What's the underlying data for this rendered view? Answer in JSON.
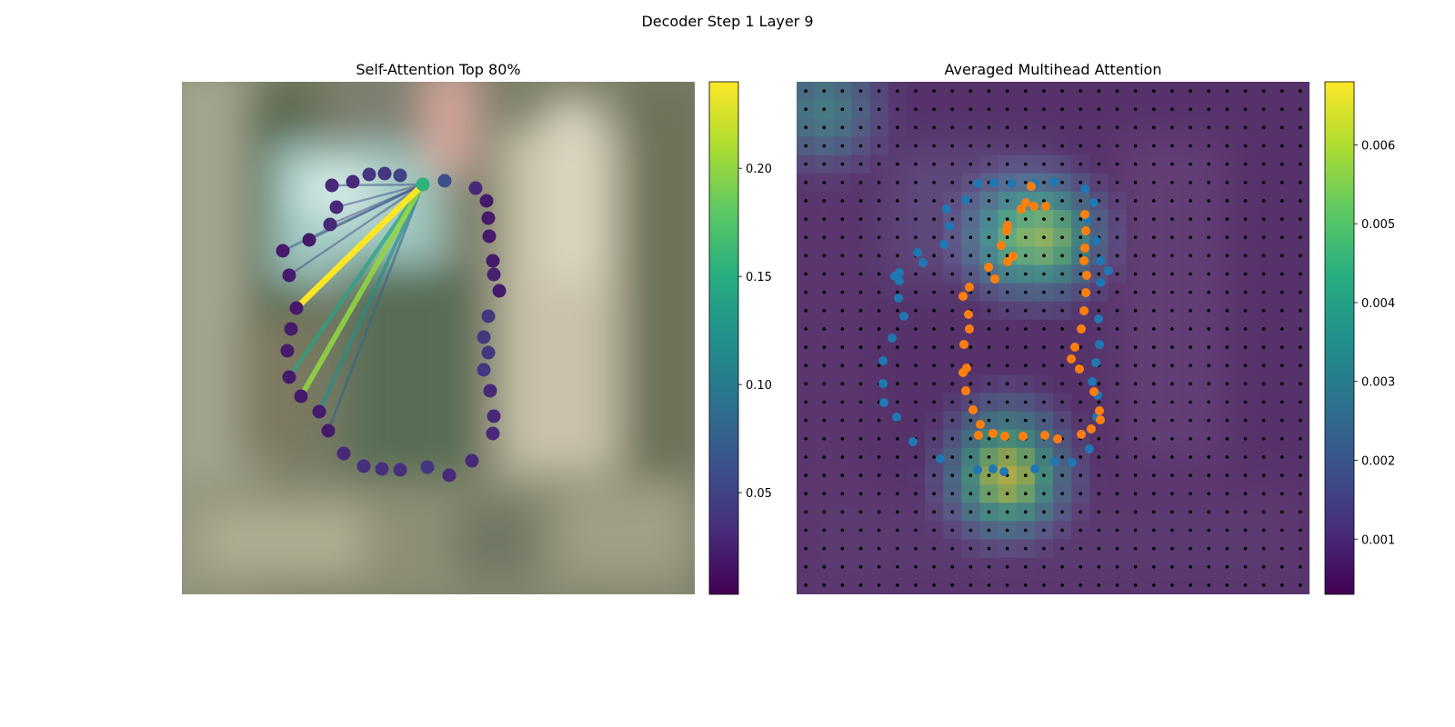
{
  "figure": {
    "title": "Decoder Step 1 Layer 9"
  },
  "chart_data": [
    {
      "type": "scatter",
      "title": "Self-Attention Top 80%",
      "background": "blurred photo",
      "colormap": "viridis",
      "colorbar": {
        "range": [
          0.003,
          0.24
        ],
        "ticks": [
          0.05,
          0.1,
          0.15,
          0.2
        ],
        "tick_labels": [
          "0.05",
          "0.10",
          "0.15",
          "0.20"
        ]
      },
      "query_point": {
        "x": 265,
        "y": 113,
        "value": 0.155
      },
      "contour_points": [
        [
          265,
          113,
          0.155
        ],
        [
          289,
          109,
          0.06
        ],
        [
          323,
          117,
          0.03
        ],
        [
          335,
          131,
          0.02
        ],
        [
          337,
          150,
          0.02
        ],
        [
          338,
          170,
          0.02
        ],
        [
          342,
          197,
          0.02
        ],
        [
          343,
          212,
          0.025
        ],
        [
          349,
          230,
          0.02
        ],
        [
          337,
          258,
          0.04
        ],
        [
          332,
          281,
          0.04
        ],
        [
          337,
          298,
          0.04
        ],
        [
          332,
          317,
          0.04
        ],
        [
          339,
          340,
          0.03
        ],
        [
          343,
          368,
          0.03
        ],
        [
          342,
          387,
          0.03
        ],
        [
          319,
          417,
          0.03
        ],
        [
          294,
          433,
          0.03
        ],
        [
          270,
          424,
          0.04
        ],
        [
          240,
          427,
          0.035
        ],
        [
          220,
          426,
          0.035
        ],
        [
          200,
          423,
          0.035
        ],
        [
          178,
          409,
          0.03
        ],
        [
          161,
          384,
          0.02
        ],
        [
          151,
          363,
          0.02
        ],
        [
          131,
          346,
          0.02
        ],
        [
          118,
          325,
          0.02
        ],
        [
          116,
          296,
          0.02
        ],
        [
          120,
          272,
          0.02
        ],
        [
          126,
          249,
          0.02
        ],
        [
          118,
          213,
          0.02
        ],
        [
          111,
          186,
          0.02
        ],
        [
          140,
          174,
          0.02
        ],
        [
          163,
          157,
          0.03
        ],
        [
          170,
          138,
          0.03
        ],
        [
          165,
          114,
          0.03
        ],
        [
          188,
          110,
          0.03
        ],
        [
          206,
          102,
          0.04
        ],
        [
          223,
          101,
          0.04
        ],
        [
          240,
          103,
          0.05
        ]
      ],
      "attention_lines": [
        {
          "to": [
            126,
            249
          ],
          "weight": 0.24
        },
        {
          "to": [
            131,
            346
          ],
          "weight": 0.2
        },
        {
          "to": [
            118,
            325
          ],
          "weight": 0.14
        },
        {
          "to": [
            151,
            363
          ],
          "weight": 0.12
        },
        {
          "to": [
            161,
            384
          ],
          "weight": 0.08
        },
        {
          "to": [
            111,
            186
          ],
          "weight": 0.07
        },
        {
          "to": [
            118,
            213
          ],
          "weight": 0.05
        },
        {
          "to": [
            140,
            174
          ],
          "weight": 0.05
        },
        {
          "to": [
            163,
            157
          ],
          "weight": 0.04
        },
        {
          "to": [
            170,
            138
          ],
          "weight": 0.05
        },
        {
          "to": [
            165,
            114
          ],
          "weight": 0.06
        }
      ]
    },
    {
      "type": "heatmap",
      "title": "Averaged Multihead Attention",
      "colormap": "viridis",
      "grid_size": 28,
      "colorbar": {
        "range": [
          0.0003,
          0.0068
        ],
        "ticks": [
          0.001,
          0.002,
          0.003,
          0.004,
          0.005,
          0.006
        ],
        "tick_labels": [
          "0.001",
          "0.002",
          "0.003",
          "0.004",
          "0.005",
          "0.006"
        ]
      },
      "hotspots": [
        {
          "cell": [
            12,
            8
          ],
          "value": 0.0055
        },
        {
          "cell": [
            13,
            8
          ],
          "value": 0.0058
        },
        {
          "cell": [
            11,
            21
          ],
          "value": 0.0065
        },
        {
          "cell": [
            11,
            20
          ],
          "value": 0.005
        },
        {
          "cell": [
            1,
            1
          ],
          "value": 0.0035
        }
      ],
      "series": [
        {
          "name": "",
          "color": "#1f77b4",
          "points": [
            [
              199,
              112
            ],
            [
              217,
              111
            ],
            [
              237,
              112
            ],
            [
              262,
              112
            ],
            [
              283,
              110
            ],
            [
              317,
              118
            ],
            [
              327,
              133
            ],
            [
              320,
              151
            ],
            [
              329,
              175
            ],
            [
              334,
              197
            ],
            [
              343,
              208
            ],
            [
              334,
              221
            ],
            [
              332,
              261
            ],
            [
              333,
              289
            ],
            [
              329,
              309
            ],
            [
              325,
              330
            ],
            [
              331,
              345
            ],
            [
              330,
              369
            ],
            [
              322,
              404
            ],
            [
              303,
              419
            ],
            [
              284,
              418
            ],
            [
              262,
              426
            ],
            [
              228,
              429
            ],
            [
              216,
              426
            ],
            [
              199,
              427
            ],
            [
              158,
              415
            ],
            [
              128,
              396
            ],
            [
              110,
              369
            ],
            [
              96,
              353
            ],
            [
              95,
              332
            ],
            [
              95,
              307
            ],
            [
              105,
              282
            ],
            [
              118,
              258
            ],
            [
              112,
              238
            ],
            [
              113,
              219
            ],
            [
              108,
              214
            ],
            [
              113,
              210
            ],
            [
              139,
              199
            ],
            [
              133,
              188
            ],
            [
              162,
              179
            ],
            [
              168,
              159
            ],
            [
              165,
              140
            ],
            [
              186,
              130
            ]
          ]
        },
        {
          "name": "",
          "color": "#ff7f0e",
          "points": [
            [
              258,
              115
            ],
            [
              261,
              137
            ],
            [
              252,
              133
            ],
            [
              274,
              137
            ],
            [
              247,
              140
            ],
            [
              232,
              158
            ],
            [
              231,
              164
            ],
            [
              225,
              180
            ],
            [
              232,
              198
            ],
            [
              238,
              192
            ],
            [
              211,
              204
            ],
            [
              218,
              217
            ],
            [
              190,
              226
            ],
            [
              183,
              236
            ],
            [
              189,
              256
            ],
            [
              190,
              272
            ],
            [
              184,
              289
            ],
            [
              187,
              315
            ],
            [
              183,
              320
            ],
            [
              186,
              340
            ],
            [
              194,
              361
            ],
            [
              202,
              377
            ],
            [
              200,
              389
            ],
            [
              216,
              387
            ],
            [
              229,
              390
            ],
            [
              249,
              390
            ],
            [
              273,
              389
            ],
            [
              287,
              393
            ],
            [
              313,
              388
            ],
            [
              324,
              382
            ],
            [
              334,
              372
            ],
            [
              333,
              362
            ],
            [
              327,
              341
            ],
            [
              311,
              316
            ],
            [
              302,
              305
            ],
            [
              306,
              292
            ],
            [
              313,
              272
            ],
            [
              316,
              252
            ],
            [
              318,
              232
            ],
            [
              319,
              213
            ],
            [
              316,
              197
            ],
            [
              317,
              183
            ],
            [
              318,
              164
            ],
            [
              317,
              146
            ]
          ]
        }
      ]
    }
  ]
}
